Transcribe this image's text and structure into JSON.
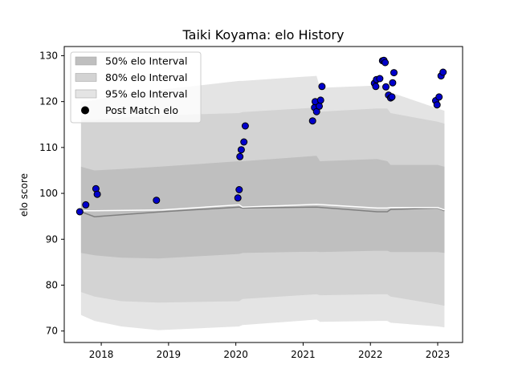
{
  "chart_data": {
    "type": "line",
    "title": "Taiki Koyama: elo History",
    "xlabel": "",
    "ylabel": "elo score",
    "xlim": [
      2017.45,
      2023.37
    ],
    "ylim": [
      67.5,
      132.0
    ],
    "x_ticks": [
      2018,
      2019,
      2020,
      2021,
      2022,
      2023
    ],
    "x_tick_labels": [
      "2018",
      "2019",
      "2020",
      "2021",
      "2022",
      "2023"
    ],
    "y_ticks": [
      70,
      80,
      90,
      100,
      110,
      120,
      130
    ],
    "y_tick_labels": [
      "70",
      "80",
      "90",
      "100",
      "110",
      "120",
      "130"
    ],
    "grid": false,
    "legend_position": "top-left",
    "colors": {
      "band95": "#e4e4e4",
      "band80": "#d3d3d3",
      "band50": "#bfbfbf",
      "mean_line": "#808080",
      "median_line": "#ffffff",
      "points": "#0000cc",
      "point_edge": "#000000"
    },
    "legend": [
      {
        "label": "50% elo Interval",
        "kind": "band50"
      },
      {
        "label": "80% elo Interval",
        "kind": "band80"
      },
      {
        "label": "95% elo Interval",
        "kind": "band95"
      },
      {
        "label": "Post Match elo",
        "kind": "point"
      }
    ],
    "band_x": [
      2017.7,
      2017.9,
      2018.3,
      2018.85,
      2020.05,
      2020.1,
      2021.2,
      2021.25,
      2022.1,
      2022.25,
      2022.3,
      2023.0,
      2023.1
    ],
    "band95": {
      "upper": [
        120.0,
        120.3,
        121.5,
        122.5,
        124.5,
        124.5,
        125.6,
        123.0,
        123.5,
        123.5,
        122.0,
        118.5,
        118.0
      ],
      "lower": [
        73.5,
        72.2,
        71.0,
        70.2,
        71.0,
        71.3,
        72.5,
        72.0,
        72.2,
        72.2,
        71.8,
        71.0,
        70.8
      ]
    },
    "band80": {
      "upper": [
        116.0,
        116.0,
        116.5,
        117.0,
        117.5,
        117.7,
        118.7,
        117.8,
        118.5,
        118.5,
        117.5,
        115.6,
        115.2
      ],
      "lower": [
        78.5,
        77.5,
        76.5,
        76.2,
        76.5,
        77.0,
        78.0,
        77.8,
        78.0,
        78.0,
        77.5,
        75.8,
        75.5
      ],
      "outer_dip": [
        2020.1,
        76.8
      ]
    },
    "band50": {
      "upper": [
        105.8,
        105.0,
        105.3,
        105.8,
        107.0,
        107.0,
        108.2,
        107.0,
        107.5,
        107.0,
        106.2,
        106.2,
        105.8
      ],
      "lower": [
        87.0,
        86.5,
        86.0,
        85.8,
        86.8,
        87.0,
        87.3,
        87.2,
        87.5,
        87.5,
        87.2,
        87.2,
        87.0
      ]
    },
    "mean_x": [
      2017.7,
      2017.9,
      2018.9,
      2020.05,
      2020.1,
      2021.2,
      2022.1,
      2022.25,
      2022.3,
      2023.0,
      2023.1
    ],
    "mean_values": [
      96.0,
      94.9,
      96.0,
      97.0,
      96.8,
      97.0,
      96.0,
      96.0,
      96.5,
      96.8,
      96.2
    ],
    "median_values": [
      96.2,
      96.2,
      96.4,
      97.5,
      97.0,
      97.6,
      96.8,
      96.8,
      96.9,
      96.9,
      96.4
    ],
    "points": [
      {
        "x": 2017.68,
        "y": 96.0
      },
      {
        "x": 2017.77,
        "y": 97.5
      },
      {
        "x": 2017.92,
        "y": 101.0
      },
      {
        "x": 2017.94,
        "y": 99.8
      },
      {
        "x": 2018.82,
        "y": 98.5
      },
      {
        "x": 2020.03,
        "y": 99.0
      },
      {
        "x": 2020.05,
        "y": 100.8
      },
      {
        "x": 2020.06,
        "y": 108.0
      },
      {
        "x": 2020.08,
        "y": 109.5
      },
      {
        "x": 2020.12,
        "y": 111.2
      },
      {
        "x": 2020.14,
        "y": 114.7
      },
      {
        "x": 2021.14,
        "y": 115.8
      },
      {
        "x": 2021.17,
        "y": 118.7
      },
      {
        "x": 2021.18,
        "y": 120.0
      },
      {
        "x": 2021.2,
        "y": 117.8
      },
      {
        "x": 2021.24,
        "y": 119.0
      },
      {
        "x": 2021.26,
        "y": 120.3
      },
      {
        "x": 2021.28,
        "y": 123.3
      },
      {
        "x": 2022.06,
        "y": 124.0
      },
      {
        "x": 2022.08,
        "y": 123.3
      },
      {
        "x": 2022.09,
        "y": 124.8
      },
      {
        "x": 2022.14,
        "y": 125.0
      },
      {
        "x": 2022.18,
        "y": 128.9
      },
      {
        "x": 2022.2,
        "y": 129.0
      },
      {
        "x": 2022.22,
        "y": 128.5
      },
      {
        "x": 2022.23,
        "y": 123.2
      },
      {
        "x": 2022.27,
        "y": 121.4
      },
      {
        "x": 2022.3,
        "y": 120.8
      },
      {
        "x": 2022.32,
        "y": 121.0
      },
      {
        "x": 2022.33,
        "y": 124.1
      },
      {
        "x": 2022.35,
        "y": 126.3
      },
      {
        "x": 2022.97,
        "y": 120.2
      },
      {
        "x": 2022.99,
        "y": 119.3
      },
      {
        "x": 2023.02,
        "y": 121.0
      },
      {
        "x": 2023.05,
        "y": 125.6
      },
      {
        "x": 2023.08,
        "y": 126.4
      }
    ]
  }
}
